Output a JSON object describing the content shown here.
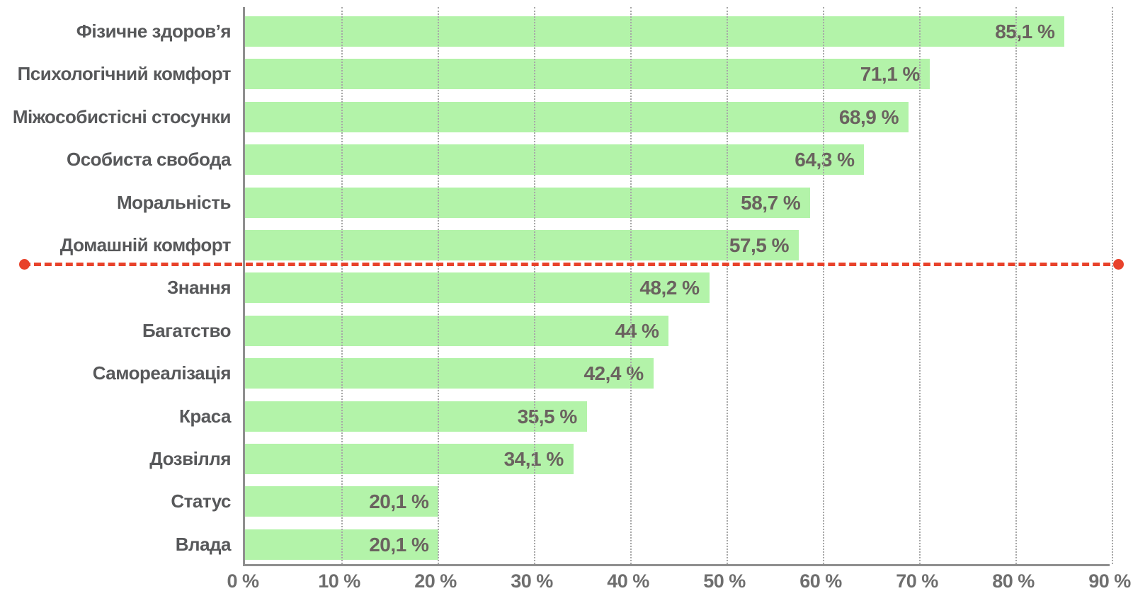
{
  "chart_data": {
    "type": "bar",
    "orientation": "horizontal",
    "title": "",
    "xlabel": "",
    "ylabel": "",
    "xlim": [
      0,
      90
    ],
    "grid": "vertical-dotted",
    "legend": "none",
    "categories": [
      "Фізичне здоров’я",
      "Психологічний комфорт",
      "Міжособистісні стосунки",
      "Особиста свобода",
      "Моральність",
      "Домашній комфорт",
      "Знання",
      "Багатство",
      "Самореалізація",
      "Краса",
      "Дозвілля",
      "Статус",
      "Влада"
    ],
    "values": [
      85.1,
      71.1,
      68.9,
      64.3,
      58.7,
      57.5,
      48.2,
      44,
      42.4,
      35.5,
      34.1,
      20.1,
      20.1
    ],
    "value_labels": [
      "85,1 %",
      "71,1 %",
      "68,9 %",
      "64,3 %",
      "58,7 %",
      "57,5 %",
      "48,2 %",
      "44 %",
      "42,4 %",
      "35,5 %",
      "34,1 %",
      "20,1 %",
      "20,1 %"
    ],
    "x_tick_labels": [
      "0 %",
      "10 %",
      "20 %",
      "30 %",
      "40 %",
      "50 %",
      "60 %",
      "70 %",
      "80 %",
      "90 %"
    ],
    "separator": {
      "description": "red dashed horizontal threshold line with dots at both ends, drawn between the 6th and 7th bars",
      "after_category": "Домашній комфорт",
      "after_index": 5
    },
    "colors": {
      "bar_fill": "#b3f3a9",
      "value_text": "#6a625f",
      "category_text": "#57585a",
      "tick_text": "#6e6e6e",
      "axis_line": "#8f8f8f",
      "gridline": "#a7a7a7",
      "separator_red": "#e8422b",
      "background": "#ffffff"
    }
  }
}
